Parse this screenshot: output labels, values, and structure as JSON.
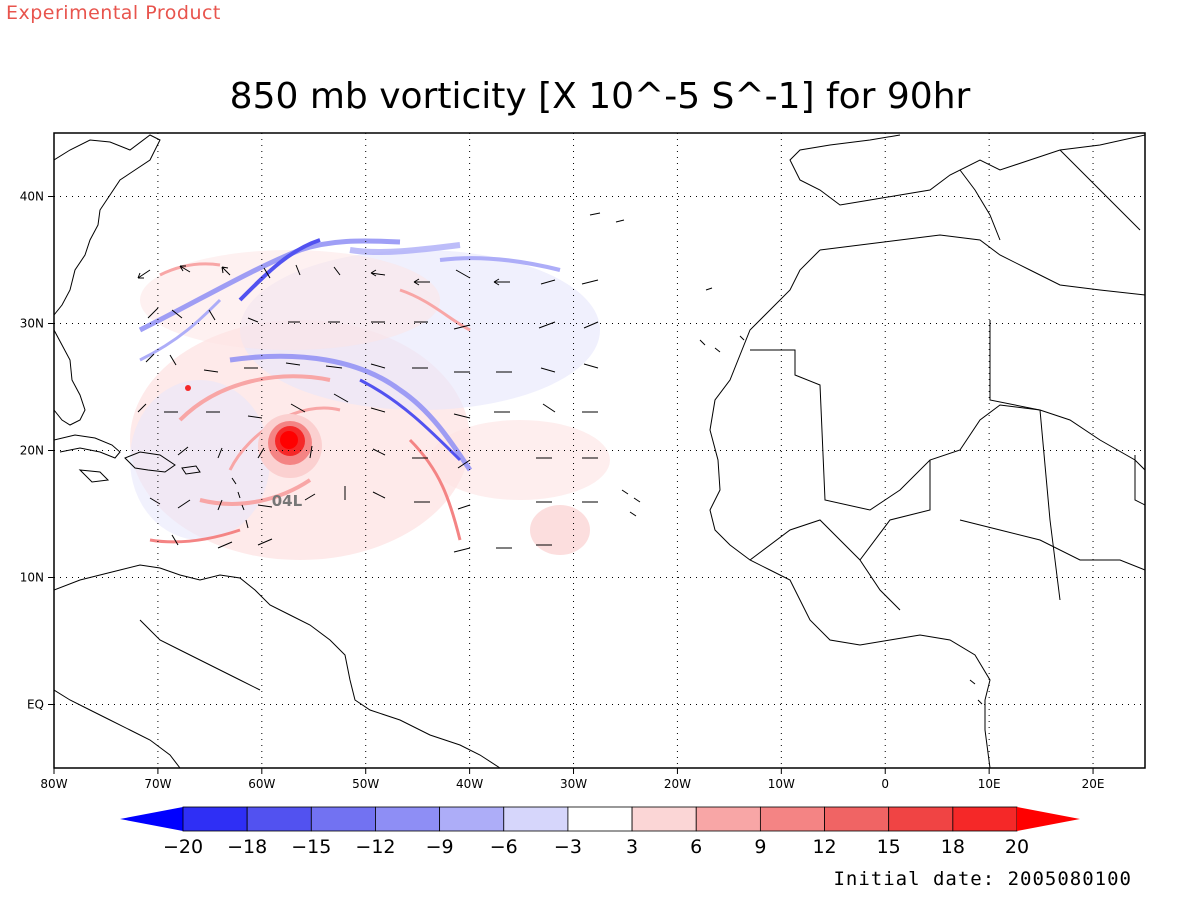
{
  "header": {
    "experimental": "Experimental Product",
    "title": "850 mb vorticity [X 10^-5 S^-1] for 90hr",
    "initial_date": "Initial date: 2005080100"
  },
  "map": {
    "lon_range": [
      -80,
      25
    ],
    "lat_range": [
      -5,
      45
    ],
    "lon_ticks": [
      {
        "v": -80,
        "label": "80W"
      },
      {
        "v": -70,
        "label": "70W"
      },
      {
        "v": -60,
        "label": "60W"
      },
      {
        "v": -50,
        "label": "50W"
      },
      {
        "v": -40,
        "label": "40W"
      },
      {
        "v": -30,
        "label": "30W"
      },
      {
        "v": -20,
        "label": "20W"
      },
      {
        "v": -10,
        "label": "10W"
      },
      {
        "v": 0,
        "label": "0"
      },
      {
        "v": 10,
        "label": "10E"
      },
      {
        "v": 20,
        "label": "20E"
      }
    ],
    "lat_ticks": [
      {
        "v": 40,
        "label": "40N"
      },
      {
        "v": 30,
        "label": "30N"
      },
      {
        "v": 20,
        "label": "20N"
      },
      {
        "v": 10,
        "label": "10N"
      },
      {
        "v": 0,
        "label": "EQ"
      }
    ],
    "storm_label": "04L",
    "storm_center": {
      "lon": -57.6,
      "lat": 20.5
    },
    "grid": "dotted"
  },
  "colorbar": {
    "labels": [
      "-20",
      "-18",
      "-15",
      "-12",
      "-9",
      "-6",
      "-3",
      "3",
      "6",
      "9",
      "12",
      "15",
      "18",
      "20"
    ],
    "colors": [
      "#0000ff",
      "#2f2ff5",
      "#5252f0",
      "#7272f2",
      "#8e8ef5",
      "#adadf8",
      "#d6d6fb",
      "#ffffff",
      "#fbd6d6",
      "#f8a6a6",
      "#f48484",
      "#f06464",
      "#f04444",
      "#f52828",
      "#ff0000"
    ]
  }
}
